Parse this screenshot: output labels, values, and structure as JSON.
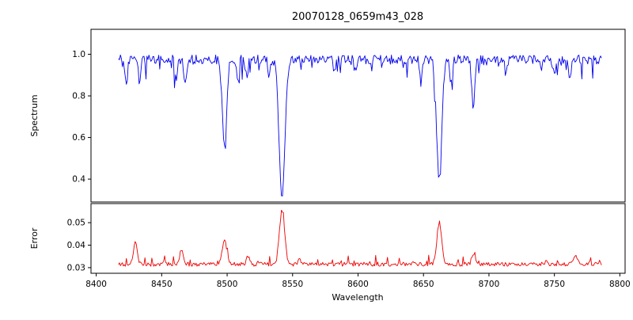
{
  "chart_data": {
    "type": "line",
    "title": "20070128_0659m43_028",
    "xlabel": "Wavelength",
    "xlim": [
      8396,
      8804
    ],
    "x_range": [
      8417,
      8786
    ],
    "x_step": 0.75,
    "xticks": [
      8400,
      8450,
      8500,
      8550,
      8600,
      8650,
      8700,
      8750,
      8800
    ],
    "xtick_labels": [
      "8400",
      "8450",
      "8500",
      "8550",
      "8600",
      "8650",
      "8700",
      "8750",
      "8800"
    ],
    "grid": false,
    "legend": "none",
    "panels": [
      {
        "name": "spectrum",
        "ylabel": "Spectrum",
        "color": "#0000ee",
        "ylim": [
          0.29,
          1.12
        ],
        "ytick_values": [
          0.4,
          0.6,
          0.8,
          1.0
        ],
        "ytick_labels": [
          "0.4",
          "0.6",
          "0.8",
          "1.0"
        ],
        "continuum": 0.975,
        "noise_amplitude": 0.022,
        "seed": 42,
        "absorption_lines": [
          {
            "center": 8423,
            "depth": 0.13,
            "width": 0.9
          },
          {
            "center": 8433,
            "depth": 0.1,
            "width": 0.9
          },
          {
            "center": 8461,
            "depth": 0.09,
            "width": 0.9
          },
          {
            "center": 8468,
            "depth": 0.12,
            "width": 1.0
          },
          {
            "center": 8498,
            "depth": 0.43,
            "width": 1.6
          },
          {
            "center": 8508,
            "depth": 0.1,
            "width": 0.9
          },
          {
            "center": 8515,
            "depth": 0.09,
            "width": 0.9
          },
          {
            "center": 8532,
            "depth": 0.07,
            "width": 0.9
          },
          {
            "center": 8542,
            "depth": 0.66,
            "width": 2.2
          },
          {
            "center": 8582,
            "depth": 0.06,
            "width": 0.9
          },
          {
            "center": 8598,
            "depth": 0.06,
            "width": 0.9
          },
          {
            "center": 8648,
            "depth": 0.08,
            "width": 0.9
          },
          {
            "center": 8662,
            "depth": 0.58,
            "width": 1.9
          },
          {
            "center": 8671,
            "depth": 0.1,
            "width": 0.9
          },
          {
            "center": 8688,
            "depth": 0.22,
            "width": 1.2
          },
          {
            "center": 8713,
            "depth": 0.08,
            "width": 0.9
          },
          {
            "center": 8750,
            "depth": 0.08,
            "width": 0.9
          },
          {
            "center": 8762,
            "depth": 0.1,
            "width": 0.9
          }
        ]
      },
      {
        "name": "error",
        "ylabel": "Error",
        "color": "#ee0000",
        "ylim": [
          0.0275,
          0.0585
        ],
        "ytick_values": [
          0.03,
          0.04,
          0.05
        ],
        "ytick_labels": [
          "0.03",
          "0.04",
          "0.05"
        ],
        "baseline": 0.0315,
        "noise_amplitude": 0.0009,
        "seed": 7,
        "peaks": [
          {
            "center": 8430,
            "height": 0.0095,
            "width": 1.4
          },
          {
            "center": 8465,
            "height": 0.006,
            "width": 1.4
          },
          {
            "center": 8498,
            "height": 0.0115,
            "width": 1.6
          },
          {
            "center": 8516,
            "height": 0.0035,
            "width": 1.1
          },
          {
            "center": 8542,
            "height": 0.024,
            "width": 2.0
          },
          {
            "center": 8662,
            "height": 0.0185,
            "width": 1.8
          },
          {
            "center": 8688,
            "height": 0.005,
            "width": 1.2
          },
          {
            "center": 8766,
            "height": 0.0045,
            "width": 1.4
          }
        ]
      }
    ]
  }
}
